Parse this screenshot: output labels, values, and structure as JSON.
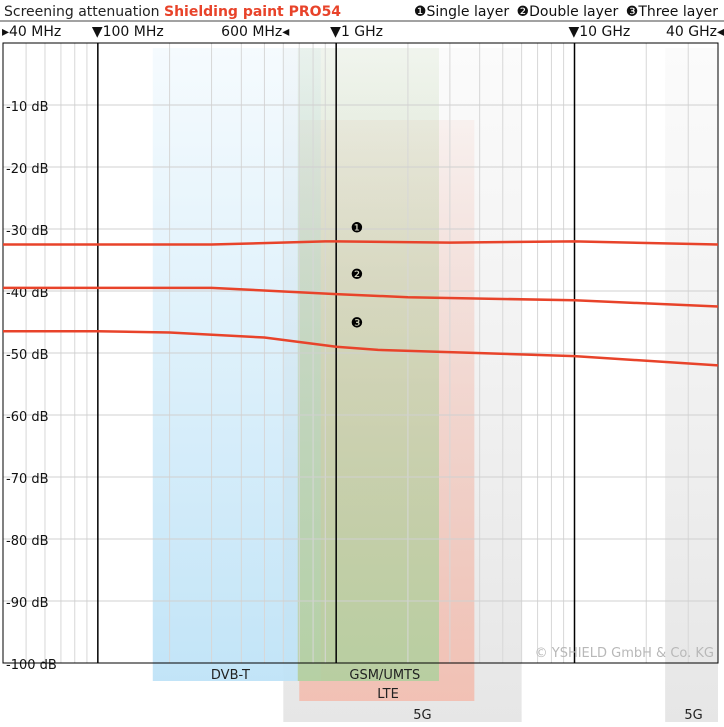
{
  "chart_data": {
    "type": "line",
    "title": "Screening attenuation",
    "subtitle": "Shielding paint PRO54",
    "x_scale": "log",
    "xlim_hz": [
      40000000,
      40000000000
    ],
    "ylim_db": [
      -100,
      0
    ],
    "y_ticks": [
      {
        "value": -10,
        "label": "-10 dB"
      },
      {
        "value": -20,
        "label": "-20 dB"
      },
      {
        "value": -30,
        "label": "-30 dB"
      },
      {
        "value": -40,
        "label": "-40 dB"
      },
      {
        "value": -50,
        "label": "-50 dB"
      },
      {
        "value": -60,
        "label": "-60 dB"
      },
      {
        "value": -70,
        "label": "-70 dB"
      },
      {
        "value": -80,
        "label": "-80 dB"
      },
      {
        "value": -90,
        "label": "-90 dB"
      },
      {
        "value": -100,
        "label": "-100 dB"
      }
    ],
    "x_ticks": [
      {
        "value_hz": 40000000,
        "label": "40 MHz",
        "marker": "left"
      },
      {
        "value_hz": 100000000,
        "label": "100 MHz",
        "marker": "down"
      },
      {
        "value_hz": 600000000,
        "label": "600 MHz",
        "marker": "right"
      },
      {
        "value_hz": 1000000000,
        "label": "1 GHz",
        "marker": "down"
      },
      {
        "value_hz": 10000000000,
        "label": "10 GHz",
        "marker": "down"
      },
      {
        "value_hz": 40000000000,
        "label": "40 GHz",
        "marker": "right"
      }
    ],
    "grid": true,
    "legend": [
      {
        "marker": "❶",
        "label": "Single layer"
      },
      {
        "marker": "❷",
        "label": "Double layer"
      },
      {
        "marker": "❸",
        "label": "Three layer"
      }
    ],
    "series": [
      {
        "marker": "❶",
        "color": "#e8432a",
        "x_hz": [
          40000000,
          100000000,
          300000000,
          900000000,
          1000000000,
          3000000000,
          10000000000,
          40000000000
        ],
        "y_db": [
          -32.5,
          -32.5,
          -32.5,
          -32,
          -32,
          -32.2,
          -32,
          -32.5
        ]
      },
      {
        "marker": "❷",
        "color": "#e8432a",
        "x_hz": [
          40000000,
          100000000,
          300000000,
          1000000000,
          2000000000,
          10000000000,
          40000000000
        ],
        "y_db": [
          -39.5,
          -39.5,
          -39.5,
          -40.5,
          -41,
          -41.5,
          -42.5
        ]
      },
      {
        "marker": "❸",
        "color": "#e8432a",
        "x_hz": [
          40000000,
          100000000,
          200000000,
          500000000,
          1000000000,
          1500000000,
          10000000000,
          40000000000
        ],
        "y_db": [
          -46.5,
          -46.5,
          -46.7,
          -47.5,
          -49,
          -49.5,
          -50.5,
          -52
        ]
      }
    ],
    "bands": [
      {
        "label": "DVB-T",
        "from_hz": 170000000,
        "to_hz": 862000000,
        "color": "#bfe3f7",
        "row": 1
      },
      {
        "label": "GSM/UMTS",
        "from_hz": 690000000,
        "to_hz": 2700000000,
        "color": "#b5cfa0",
        "row": 1
      },
      {
        "label": "LTE",
        "from_hz": 700000000,
        "to_hz": 3800000000,
        "color": "#f2bfb2",
        "row": 2
      },
      {
        "label": "5G",
        "from_hz": 600000000,
        "to_hz": 6000000000,
        "color": "#e5e5e5",
        "row": 3
      },
      {
        "label": "5G",
        "from_hz": 24000000000,
        "to_hz": 40000000000,
        "color": "#e5e5e5",
        "row": 3
      }
    ],
    "annotations": [
      {
        "text": "© YSHIELD GmbH & Co. KG"
      }
    ]
  }
}
